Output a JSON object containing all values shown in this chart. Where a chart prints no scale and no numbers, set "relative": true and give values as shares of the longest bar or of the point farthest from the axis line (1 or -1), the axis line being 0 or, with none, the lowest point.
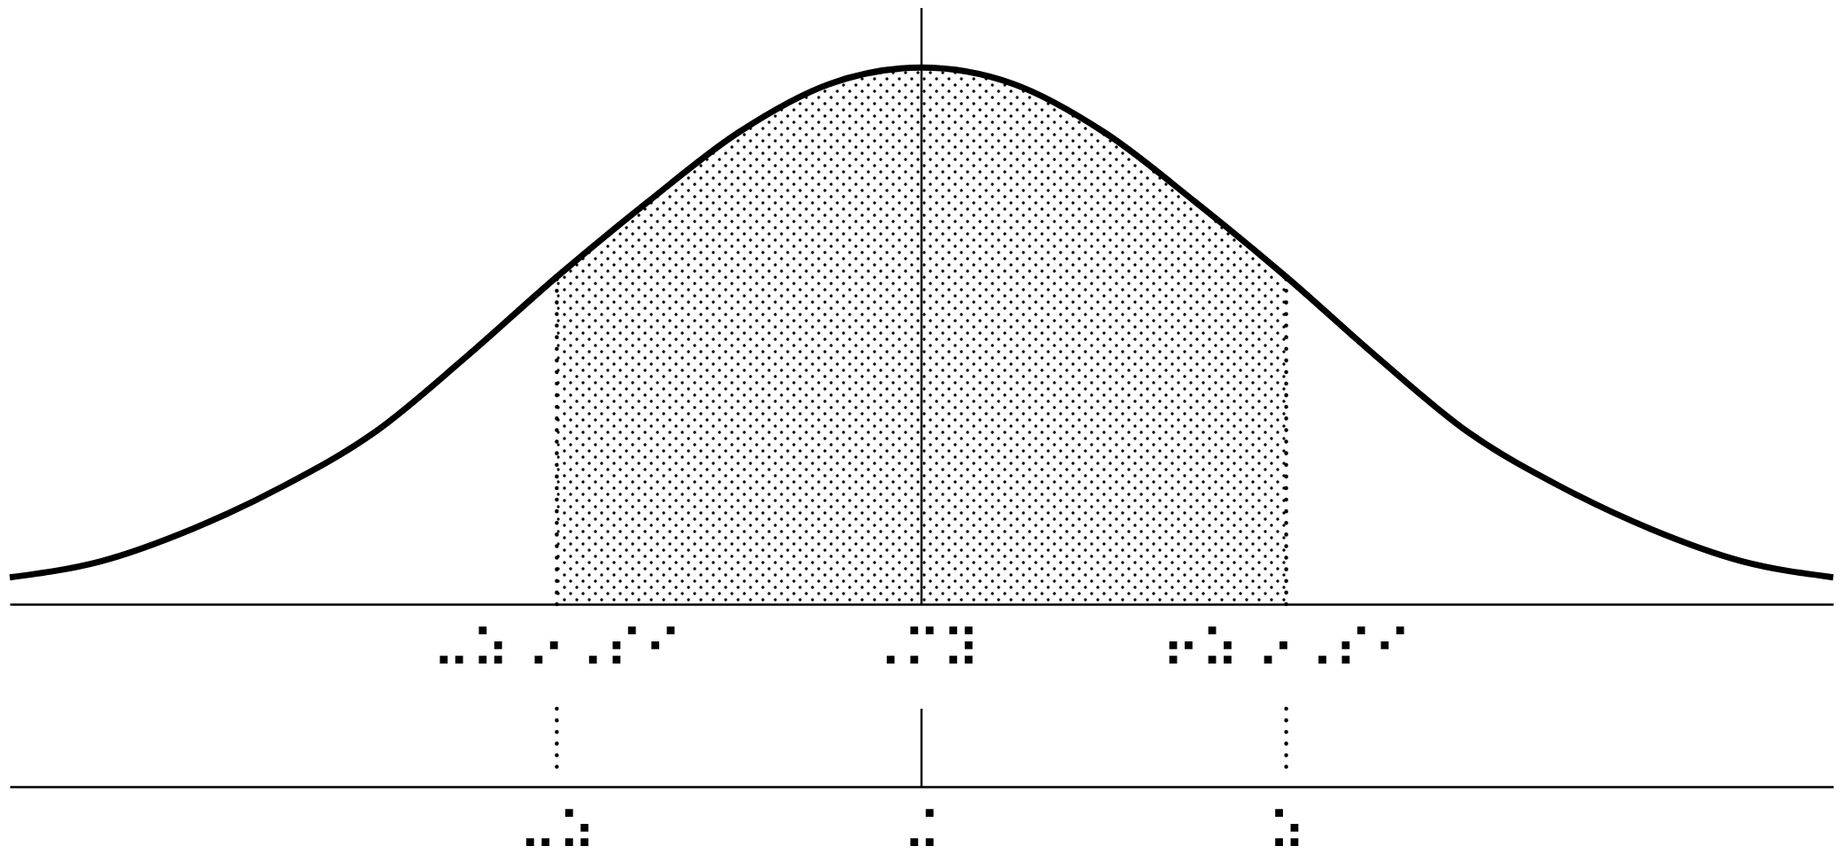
{
  "chart_data": {
    "type": "line",
    "relative": true,
    "categories": [
      null,
      null,
      null,
      null,
      null,
      null,
      "⠤⠵ ⠔⠠⠎⠊",
      null,
      null,
      null,
      "⠠⠍⠽",
      null,
      null,
      null,
      "⠖⠵ ⠔⠠⠎⠊",
      null,
      null,
      null,
      null,
      null,
      null
    ],
    "series": [
      {
        "type": "area",
        "color": "#000000",
        "line_style": "dotted",
        "values": [
          null,
          null,
          null,
          null,
          null,
          null,
          0.61,
          0.75,
          0.88,
          0.97,
          1,
          0.97,
          0.88,
          0.75,
          0.61,
          null,
          null,
          null,
          null,
          null,
          null
        ]
      },
      {
        "color": "#000000",
        "values": [
          0.05,
          0.08,
          0.14,
          0.22,
          0.32,
          0.46,
          0.61,
          0.75,
          0.88,
          0.97,
          1,
          0.97,
          0.88,
          0.75,
          0.61,
          0.46,
          0.32,
          0.22,
          0.14,
          0.08,
          0.05
        ]
      }
    ],
    "ref_lines": [
      {
        "axis": "x",
        "value": "⠠⠍⠽",
        "line_style": "solid"
      }
    ],
    "annotations": [
      {
        "text": "⠤⠵",
        "x": "⠤⠵ ⠔⠠⠎⠊"
      },
      {
        "text": "⠬",
        "x": "⠠⠍⠽"
      },
      {
        "text": "⠵",
        "x": "⠖⠵ ⠔⠠⠎⠊"
      }
    ]
  }
}
